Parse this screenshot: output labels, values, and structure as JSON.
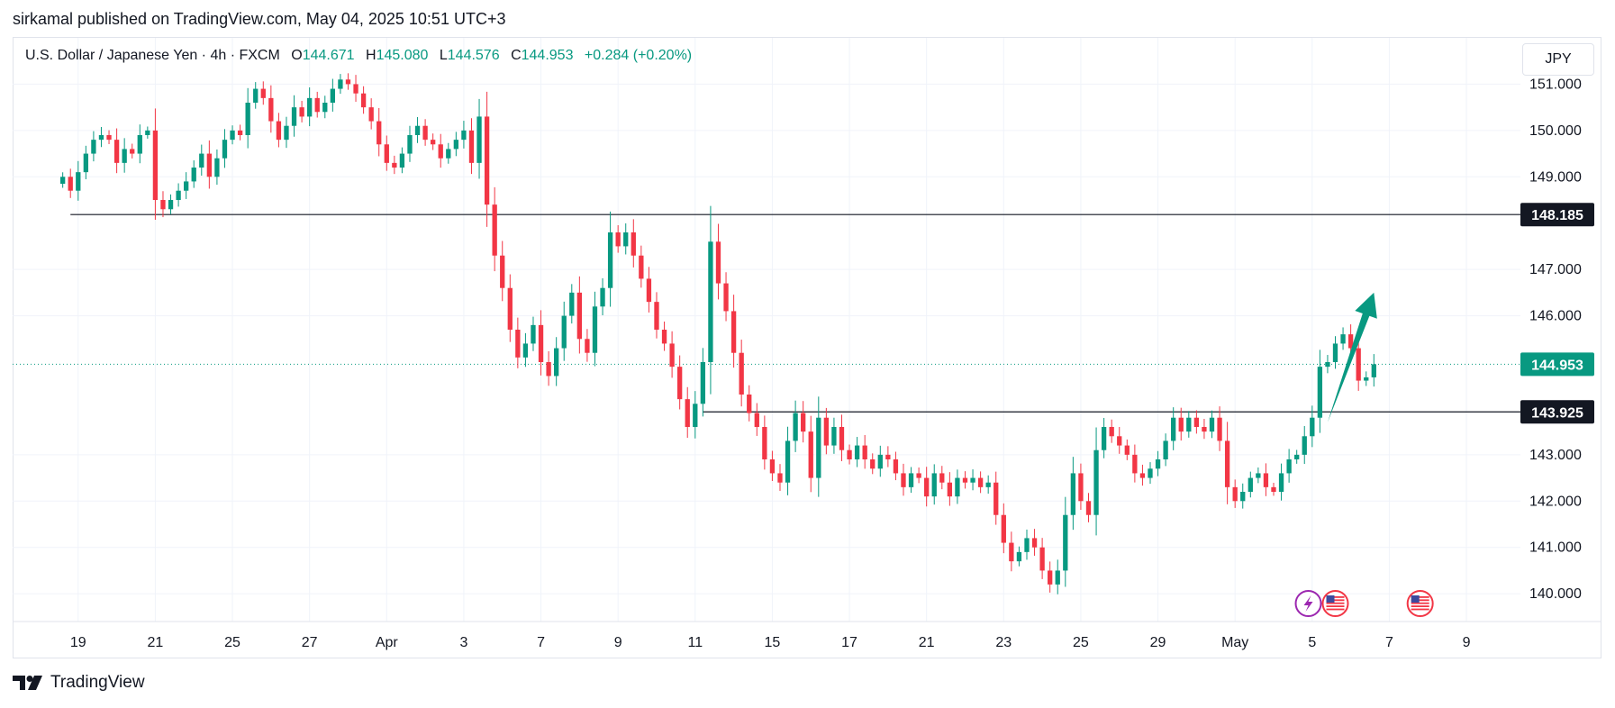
{
  "publisher_line": "sirkamal published on TradingView.com, May 04, 2025 10:51 UTC+3",
  "legend": {
    "symbol": "U.S. Dollar / Japanese Yen · 4h · FXCM",
    "open_label": "O",
    "open": "144.671",
    "high_label": "H",
    "high": "145.080",
    "low_label": "L",
    "low": "144.576",
    "close_label": "C",
    "close": "144.953",
    "change": "+0.284 (+0.20%)"
  },
  "currency_button": "JPY",
  "footer": {
    "brand": "TradingView"
  },
  "colors": {
    "up": "#089981",
    "down": "#f23645",
    "grid": "#f0f3fa",
    "hline": "#131722",
    "last_price_label": "#089981",
    "arrow": "#089981",
    "event_purple": "#9c27b0",
    "event_red": "#f23645"
  },
  "chart_data": {
    "type": "candlestick",
    "title": "U.S. Dollar / Japanese Yen · 4h · FXCM",
    "ylim": [
      139.4,
      152.0
    ],
    "y_ticks": [
      "151.000",
      "150.000",
      "149.000",
      "147.000",
      "146.000",
      "143.000",
      "142.000",
      "141.000",
      "140.000"
    ],
    "x_ticks": [
      {
        "label": "19",
        "x": 2
      },
      {
        "label": "21",
        "x": 12
      },
      {
        "label": "25",
        "x": 22
      },
      {
        "label": "27",
        "x": 32
      },
      {
        "label": "Apr",
        "x": 42
      },
      {
        "label": "3",
        "x": 52
      },
      {
        "label": "7",
        "x": 62
      },
      {
        "label": "9",
        "x": 72
      },
      {
        "label": "11",
        "x": 82
      },
      {
        "label": "15",
        "x": 92
      },
      {
        "label": "17",
        "x": 102
      },
      {
        "label": "21",
        "x": 112
      },
      {
        "label": "23",
        "x": 122
      },
      {
        "label": "25",
        "x": 132
      },
      {
        "label": "29",
        "x": 142
      },
      {
        "label": "May",
        "x": 152
      },
      {
        "label": "5",
        "x": 162
      },
      {
        "label": "7",
        "x": 172
      },
      {
        "label": "9",
        "x": 182
      }
    ],
    "x_range": [
      -6.5,
      189
    ],
    "horizontal_lines": [
      {
        "price": 148.185,
        "label": "148.185",
        "from_x": 1
      },
      {
        "price": 143.925,
        "label": "143.925",
        "from_x": 83
      }
    ],
    "last_price": {
      "price": 144.953,
      "label": "144.953"
    },
    "closes": [
      149.0,
      148.7,
      149.1,
      149.5,
      149.8,
      149.9,
      149.8,
      149.3,
      149.6,
      149.5,
      149.9,
      150.0,
      148.5,
      148.3,
      148.5,
      148.7,
      148.9,
      149.2,
      149.5,
      149.0,
      149.4,
      149.8,
      150.0,
      149.9,
      150.6,
      150.9,
      150.7,
      150.2,
      149.8,
      150.1,
      150.5,
      150.3,
      150.7,
      150.4,
      150.6,
      150.9,
      151.1,
      151.0,
      150.8,
      150.5,
      150.2,
      149.7,
      149.3,
      149.2,
      149.5,
      149.9,
      150.1,
      149.8,
      149.7,
      149.4,
      149.6,
      149.8,
      150.0,
      149.3,
      150.3,
      148.4,
      147.3,
      146.6,
      145.7,
      145.1,
      145.4,
      145.8,
      145.0,
      144.7,
      145.3,
      146.0,
      146.5,
      145.5,
      145.2,
      146.2,
      146.6,
      147.8,
      147.5,
      147.8,
      147.3,
      146.8,
      146.3,
      145.7,
      145.4,
      144.9,
      144.2,
      143.6,
      144.1,
      145.0,
      147.6,
      146.7,
      146.1,
      145.2,
      144.3,
      143.9,
      143.6,
      142.9,
      142.6,
      142.4,
      143.3,
      143.9,
      143.5,
      142.5,
      143.8,
      143.2,
      143.6,
      143.1,
      142.9,
      143.2,
      142.9,
      142.7,
      143.0,
      142.9,
      142.6,
      142.3,
      142.6,
      142.5,
      142.1,
      142.6,
      142.4,
      142.1,
      142.5,
      142.4,
      142.5,
      142.3,
      142.4,
      141.7,
      141.1,
      140.7,
      140.9,
      141.2,
      141.0,
      140.5,
      140.2,
      140.5,
      141.7,
      142.6,
      142.0,
      141.7,
      143.1,
      143.6,
      143.4,
      143.2,
      143.0,
      142.6,
      142.5,
      142.7,
      142.9,
      143.3,
      143.8,
      143.5,
      143.8,
      143.6,
      143.5,
      143.8,
      143.3,
      142.3,
      142.0,
      142.2,
      142.5,
      142.6,
      142.3,
      142.2,
      142.6,
      142.9,
      143.0,
      143.4,
      143.8,
      144.9,
      145.0,
      145.4,
      145.6,
      145.3,
      144.6,
      144.671,
      144.953
    ]
  },
  "events": [
    {
      "icon": "lightning-icon",
      "x": 161.5
    },
    {
      "icon": "us-flag-icon",
      "x": 165
    },
    {
      "icon": "us-flag-icon",
      "x": 176
    }
  ]
}
